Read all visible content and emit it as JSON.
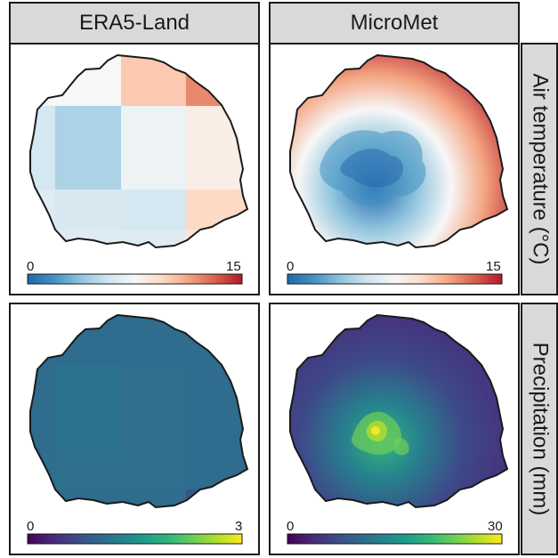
{
  "columns": [
    "ERA5-Land",
    "MicroMet"
  ],
  "rows": [
    "Air temperature (°C)",
    "Precipitation (mm)"
  ],
  "colors": {
    "strip_bg": "#d9d9d9",
    "border": "#1a1a1a",
    "rdbu": [
      "#2166ac",
      "#4393c3",
      "#92c5de",
      "#d1e5f0",
      "#f7f7f7",
      "#fddbc7",
      "#f4a582",
      "#d6604d",
      "#b2182b"
    ],
    "viridis": [
      "#440154",
      "#482878",
      "#3e4989",
      "#31688e",
      "#26828e",
      "#1f9e89",
      "#35b779",
      "#6ece58",
      "#b5de2b",
      "#fde725"
    ]
  },
  "chart_data": [
    {
      "type": "heatmap",
      "column": "ERA5-Land",
      "row": "Air temperature (°C)",
      "colormap": "RdBu_r",
      "scale": [
        0,
        15
      ],
      "tick_labels": [
        "0",
        "15"
      ],
      "grid_cells": [
        [
          7.6,
          7.5,
          10.0,
          12.0
        ],
        [
          5.8,
          4.5,
          7.0,
          8.2
        ],
        [
          6.2,
          5.9,
          5.8,
          9.4
        ],
        [
          9.0,
          6.3,
          6.3,
          8.8
        ]
      ]
    },
    {
      "type": "heatmap",
      "column": "MicroMet",
      "row": "Air temperature (°C)",
      "colormap": "RdBu_r",
      "scale": [
        0,
        15
      ],
      "tick_labels": [
        "0",
        "15"
      ]
    },
    {
      "type": "heatmap",
      "column": "ERA5-Land",
      "row": "Precipitation (mm)",
      "colormap": "viridis",
      "scale": [
        0,
        3
      ],
      "tick_labels": [
        "0",
        "3"
      ],
      "grid_cells": [
        [
          1.05,
          1.05,
          1.05,
          1.05
        ],
        [
          1.05,
          1.15,
          1.1,
          1.05
        ],
        [
          1.05,
          1.1,
          1.1,
          1.05
        ],
        [
          1.1,
          1.05,
          1.05,
          0.8
        ]
      ]
    },
    {
      "type": "heatmap",
      "column": "MicroMet",
      "row": "Precipitation (mm)",
      "colormap": "viridis",
      "scale": [
        0,
        30
      ],
      "tick_labels": [
        "0",
        "30"
      ]
    }
  ]
}
